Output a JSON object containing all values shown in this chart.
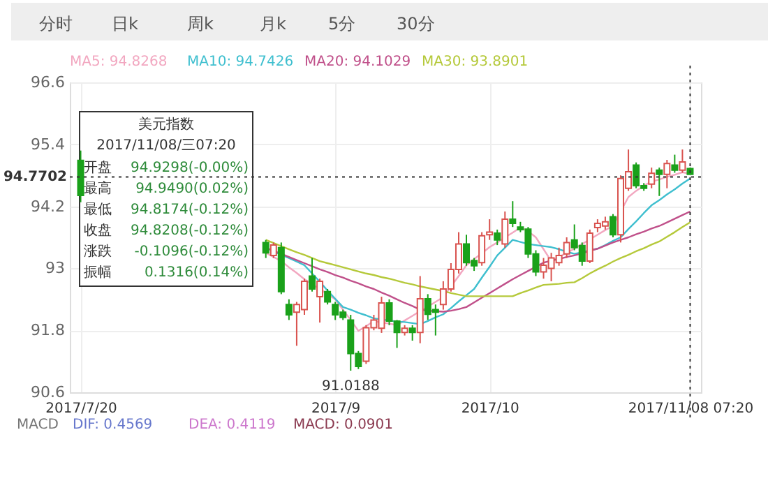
{
  "chart_data": {
    "type": "candlestick",
    "categories": [
      "2017/7/20",
      null,
      null,
      null,
      null,
      null,
      null,
      null,
      null,
      null,
      null,
      null,
      null,
      null,
      null,
      null,
      null,
      null,
      null,
      null,
      null,
      null,
      null,
      null,
      null,
      null,
      null,
      null,
      null,
      null,
      null,
      null,
      null,
      "2017/9",
      null,
      null,
      null,
      null,
      null,
      null,
      null,
      null,
      null,
      null,
      null,
      null,
      null,
      null,
      null,
      null,
      null,
      null,
      null,
      "2017/10",
      null,
      null,
      null,
      null,
      null,
      null,
      null,
      null,
      null,
      null,
      null,
      null,
      null,
      null,
      null,
      null,
      null,
      null,
      null,
      null,
      null,
      null,
      null,
      null,
      null,
      "2017/11/08 07:20"
    ],
    "ohlc": [
      [
        95.09,
        95.28,
        94.28,
        94.41
      ],
      null,
      null,
      null,
      null,
      null,
      null,
      null,
      null,
      null,
      null,
      null,
      null,
      null,
      null,
      null,
      null,
      null,
      null,
      null,
      null,
      null,
      null,
      null,
      [
        93.5,
        93.55,
        93.2,
        93.3
      ],
      [
        93.25,
        93.5,
        93.2,
        93.45
      ],
      [
        93.4,
        93.5,
        92.5,
        92.55
      ],
      [
        92.3,
        92.4,
        92.0,
        92.1
      ],
      [
        92.15,
        92.35,
        91.5,
        92.3
      ],
      [
        92.2,
        92.8,
        92.1,
        92.75
      ],
      [
        92.85,
        93.2,
        92.55,
        92.6
      ],
      [
        92.45,
        92.8,
        91.95,
        92.75
      ],
      [
        92.55,
        92.6,
        92.3,
        92.35
      ],
      [
        92.3,
        92.35,
        92.0,
        92.1
      ],
      [
        92.15,
        92.2,
        92.0,
        92.05
      ],
      [
        92.0,
        92.1,
        91.0188,
        91.35
      ],
      [
        91.35,
        91.4,
        91.05,
        91.1
      ],
      [
        91.2,
        91.9,
        91.15,
        91.85
      ],
      [
        91.85,
        92.1,
        91.8,
        92.0
      ],
      [
        91.84,
        92.45,
        91.75,
        92.33
      ],
      [
        92.33,
        92.4,
        91.9,
        91.98
      ],
      [
        91.98,
        92.0,
        91.46,
        91.76
      ],
      [
        91.76,
        91.9,
        91.7,
        91.84
      ],
      [
        91.84,
        91.9,
        91.6,
        91.76
      ],
      [
        91.76,
        92.85,
        91.55,
        92.41
      ],
      [
        92.41,
        92.5,
        92.0,
        92.11
      ],
      [
        92.2,
        92.3,
        91.7,
        92.15
      ],
      [
        92.3,
        92.75,
        92.2,
        92.6
      ],
      [
        92.6,
        93.1,
        92.55,
        92.98
      ],
      [
        92.98,
        93.7,
        92.9,
        93.47
      ],
      [
        93.47,
        93.65,
        93.05,
        93.11
      ],
      [
        93.15,
        93.2,
        92.95,
        93.05
      ],
      [
        93.11,
        93.7,
        93.05,
        93.63
      ],
      [
        93.65,
        93.95,
        93.55,
        93.7
      ],
      [
        93.68,
        93.75,
        93.45,
        93.55
      ],
      [
        93.47,
        94.1,
        93.4,
        93.95
      ],
      [
        93.95,
        94.3,
        93.8,
        93.87
      ],
      [
        93.8,
        93.9,
        93.7,
        93.75
      ],
      [
        93.76,
        93.8,
        93.2,
        93.28
      ],
      [
        93.28,
        93.35,
        92.85,
        92.93
      ],
      [
        92.93,
        93.2,
        92.8,
        93.06
      ],
      [
        93.0,
        93.3,
        92.75,
        93.2
      ],
      [
        93.11,
        93.4,
        93.05,
        93.25
      ],
      [
        93.28,
        93.6,
        93.2,
        93.5
      ],
      [
        93.55,
        93.85,
        93.35,
        93.4
      ],
      [
        93.44,
        93.5,
        93.05,
        93.14
      ],
      [
        93.14,
        93.75,
        93.1,
        93.68
      ],
      [
        93.79,
        93.95,
        93.7,
        93.87
      ],
      [
        93.82,
        94.0,
        93.75,
        93.9
      ],
      [
        94.0,
        94.05,
        93.6,
        93.65
      ],
      [
        93.65,
        94.8,
        93.5,
        94.74
      ],
      [
        94.55,
        95.3,
        94.5,
        94.87
      ],
      [
        95.0,
        95.05,
        94.55,
        94.6
      ],
      [
        94.6,
        94.65,
        94.5,
        94.55
      ],
      [
        94.63,
        94.95,
        94.55,
        94.84
      ],
      [
        94.9,
        94.95,
        94.4,
        94.82
      ],
      [
        94.82,
        95.1,
        94.55,
        95.03
      ],
      [
        95.0,
        95.2,
        94.85,
        94.9
      ],
      [
        94.9,
        95.3,
        94.85,
        95.06
      ],
      [
        94.9298,
        94.949,
        94.8174,
        94.8208
      ]
    ],
    "colors": [
      "#1aa11a",
      null,
      null,
      null,
      null,
      null,
      null,
      null,
      null,
      null,
      null,
      null,
      null,
      null,
      null,
      null,
      null,
      null,
      null,
      null,
      null,
      null,
      null,
      null,
      "#1aa11a",
      "#d9534f",
      "#1aa11a",
      "#1aa11a",
      "#d9534f",
      "#d9534f",
      "#1aa11a",
      "#d9534f",
      "#1aa11a",
      "#1aa11a",
      "#1aa11a",
      "#1aa11a",
      "#1aa11a",
      "#d9534f",
      "#d9534f",
      "#d9534f",
      "#1aa11a",
      "#1aa11a",
      "#d9534f",
      "#1aa11a",
      "#d9534f",
      "#1aa11a",
      "#1aa11a",
      "#d9534f",
      "#d9534f",
      "#d9534f",
      "#1aa11a",
      "#1aa11a",
      "#d9534f",
      "#d9534f",
      "#1aa11a",
      "#d9534f",
      "#1aa11a",
      "#1aa11a",
      "#1aa11a",
      "#1aa11a",
      "#d9534f",
      "#d9534f",
      "#d9534f",
      "#d9534f",
      "#1aa11a",
      "#1aa11a",
      "#d9534f",
      "#d9534f",
      "#d9534f",
      "#1aa11a",
      "#d9534f",
      "#d9534f",
      "#1aa11a",
      "#1aa11a",
      "#d9534f",
      "#1aa11a",
      "#d9534f",
      "#1aa11a",
      "#d9534f",
      "#1aa11a"
    ],
    "series": [
      {
        "name": "MA5: 94.8268",
        "type": "line",
        "color": "#f2a7c0",
        "values": [
          null,
          null,
          null,
          null,
          null,
          null,
          null,
          null,
          null,
          null,
          null,
          null,
          null,
          null,
          null,
          null,
          null,
          null,
          null,
          null,
          null,
          null,
          null,
          null,
          93.3,
          93.22,
          93.14,
          93.02,
          92.91,
          92.79,
          92.69,
          92.6,
          92.5,
          92.4,
          92.2,
          92.0,
          91.79,
          91.88,
          91.98,
          91.95,
          91.93,
          91.9,
          91.99,
          92.08,
          92.17,
          92.26,
          92.35,
          92.44,
          92.65,
          92.85,
          93.06,
          93.18,
          93.29,
          93.41,
          93.5,
          93.6,
          93.69,
          93.79,
          93.72,
          93.6,
          93.37,
          93.14,
          93.22,
          93.3,
          93.38,
          93.47,
          93.56,
          93.65,
          93.74,
          93.82,
          94.1,
          94.38,
          94.5,
          94.6,
          94.68,
          94.72,
          94.77,
          94.81,
          94.86,
          94.83
        ]
      },
      {
        "name": "MA10: 94.7426",
        "type": "line",
        "color": "#3fbfcf",
        "values": [
          null,
          null,
          null,
          null,
          null,
          null,
          null,
          null,
          null,
          null,
          null,
          null,
          null,
          null,
          null,
          null,
          null,
          null,
          null,
          null,
          null,
          null,
          null,
          null,
          93.4,
          93.33,
          93.26,
          93.2,
          93.13,
          93.06,
          92.9,
          92.74,
          92.57,
          92.41,
          92.25,
          92.2,
          92.14,
          92.09,
          92.03,
          92.01,
          91.99,
          91.97,
          91.96,
          91.94,
          91.92,
          91.98,
          92.05,
          92.11,
          92.23,
          92.36,
          92.48,
          92.6,
          92.82,
          93.03,
          93.25,
          93.4,
          93.55,
          93.51,
          93.47,
          93.45,
          93.43,
          93.41,
          93.37,
          93.32,
          93.28,
          93.31,
          93.35,
          93.38,
          93.45,
          93.53,
          93.6,
          93.76,
          93.91,
          94.07,
          94.22,
          94.32,
          94.43,
          94.53,
          94.64,
          94.74
        ]
      },
      {
        "name": "MA20: 94.1029",
        "type": "line",
        "color": "#c0508a",
        "values": [
          null,
          null,
          null,
          null,
          null,
          null,
          null,
          null,
          null,
          null,
          null,
          null,
          null,
          null,
          null,
          null,
          null,
          null,
          null,
          null,
          null,
          null,
          null,
          null,
          93.4,
          93.34,
          93.28,
          93.22,
          93.16,
          93.1,
          93.04,
          92.98,
          92.93,
          92.87,
          92.82,
          92.76,
          92.71,
          92.65,
          92.6,
          92.53,
          92.47,
          92.4,
          92.33,
          92.27,
          92.2,
          92.18,
          92.17,
          92.16,
          92.18,
          92.21,
          92.25,
          92.34,
          92.43,
          92.52,
          92.61,
          92.7,
          92.79,
          92.87,
          92.95,
          93.03,
          93.11,
          93.15,
          93.18,
          93.22,
          93.25,
          93.29,
          93.34,
          93.38,
          93.44,
          93.5,
          93.55,
          93.6,
          93.66,
          93.71,
          93.77,
          93.82,
          93.89,
          93.96,
          94.03,
          94.1
        ]
      },
      {
        "name": "MA30: 93.8901",
        "type": "line",
        "color": "#b5c93a",
        "values": [
          null,
          null,
          null,
          null,
          null,
          null,
          null,
          null,
          null,
          null,
          null,
          null,
          null,
          null,
          null,
          null,
          null,
          null,
          null,
          null,
          null,
          null,
          null,
          null,
          93.55,
          93.49,
          93.43,
          93.37,
          93.31,
          93.26,
          93.2,
          93.14,
          93.1,
          93.06,
          93.02,
          92.98,
          92.94,
          92.9,
          92.87,
          92.83,
          92.8,
          92.76,
          92.72,
          92.69,
          92.65,
          92.62,
          92.59,
          92.56,
          92.52,
          92.49,
          92.46,
          92.46,
          92.46,
          92.46,
          92.46,
          92.46,
          92.46,
          92.52,
          92.57,
          92.63,
          92.68,
          92.69,
          92.7,
          92.72,
          92.73,
          92.81,
          92.9,
          92.98,
          93.05,
          93.13,
          93.2,
          93.26,
          93.33,
          93.39,
          93.46,
          93.52,
          93.61,
          93.7,
          93.8,
          93.89
        ]
      }
    ],
    "ylim": [
      90.6,
      96.6
    ],
    "yticks": [
      90.6,
      91.8,
      93,
      94.2,
      95.4,
      96.6
    ],
    "grid": true,
    "legend": "top",
    "ref_lines": [
      {
        "axis": "y",
        "value": 94.7702,
        "label": "94.7702",
        "color": "#333333",
        "line_style": "dotted"
      },
      {
        "axis": "x",
        "value": "2017/11/08 07:20",
        "color": "#333333",
        "line_style": "dotted"
      }
    ],
    "annotations": [
      "分时",
      "日k",
      "周k",
      "月k",
      "5分",
      "30分",
      "美元指数",
      "2017/11/08/三07:20",
      "开盘",
      "94.9298(-0.00%)",
      "最高",
      "94.9490(0.02%)",
      "最低",
      "94.8174(-0.12%)",
      "收盘",
      "94.8208(-0.12%)",
      "涨跌",
      "-0.1096(-0.12%)",
      "振幅",
      "0.1316(0.14%)",
      "MACD",
      "DIF: 0.4569",
      "DEA: 0.4119",
      "MACD: 0.0901",
      {
        "text": "91.0188",
        "y": 91.0188
      }
    ]
  }
}
